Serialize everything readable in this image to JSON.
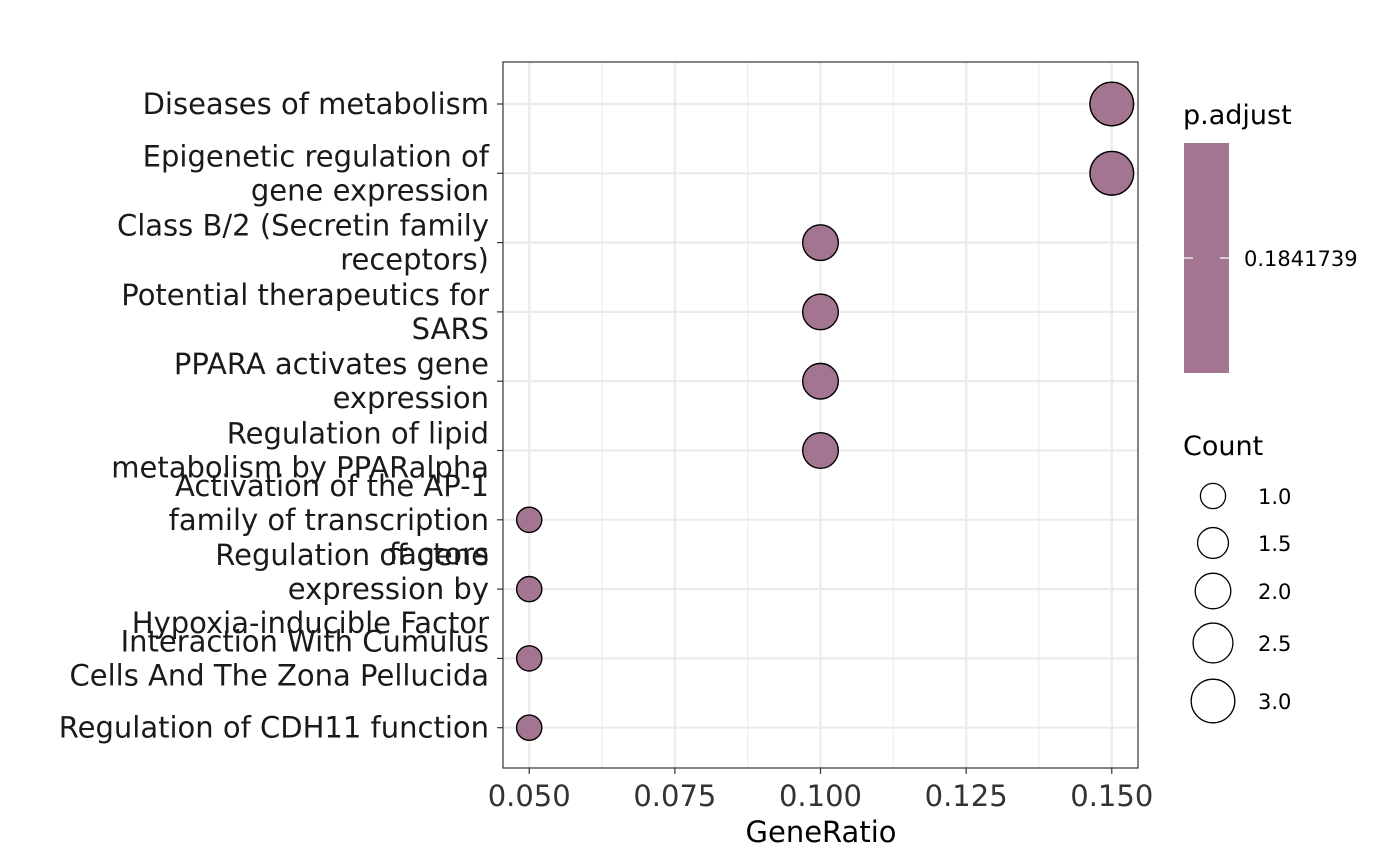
{
  "chart_data": {
    "type": "scatter",
    "title": "",
    "xlabel": "GeneRatio",
    "ylabel": "",
    "xlim": [
      0.0455,
      0.1545
    ],
    "x_ticks": [
      0.05,
      0.075,
      0.1,
      0.125,
      0.15
    ],
    "x_tick_labels": [
      "0.050",
      "0.075",
      "0.100",
      "0.125",
      "0.150"
    ],
    "grid": true,
    "points": [
      {
        "label": [
          "Diseases of metabolism"
        ],
        "gene_ratio": 0.15,
        "count": 3,
        "p_adjust": 0.1841739
      },
      {
        "label": [
          "Epigenetic regulation of",
          "gene expression"
        ],
        "gene_ratio": 0.15,
        "count": 3,
        "p_adjust": 0.1841739
      },
      {
        "label": [
          "Class B/2 (Secretin family",
          "receptors)"
        ],
        "gene_ratio": 0.1,
        "count": 2,
        "p_adjust": 0.1841739
      },
      {
        "label": [
          "Potential therapeutics for",
          "SARS"
        ],
        "gene_ratio": 0.1,
        "count": 2,
        "p_adjust": 0.1841739
      },
      {
        "label": [
          "PPARA activates gene",
          "expression"
        ],
        "gene_ratio": 0.1,
        "count": 2,
        "p_adjust": 0.1841739
      },
      {
        "label": [
          "Regulation of lipid",
          "metabolism by PPARalpha"
        ],
        "gene_ratio": 0.1,
        "count": 2,
        "p_adjust": 0.1841739
      },
      {
        "label": [
          "Activation of the AP-1",
          "family of transcription",
          "factors"
        ],
        "gene_ratio": 0.05,
        "count": 1,
        "p_adjust": 0.1841739
      },
      {
        "label": [
          "Regulation of gene",
          "expression by",
          "Hypoxia-inducible Factor"
        ],
        "gene_ratio": 0.05,
        "count": 1,
        "p_adjust": 0.1841739
      },
      {
        "label": [
          "Interaction With Cumulus",
          "Cells And The Zona Pellucida"
        ],
        "gene_ratio": 0.05,
        "count": 1,
        "p_adjust": 0.1841739
      },
      {
        "label": [
          "Regulation of CDH11 function"
        ],
        "gene_ratio": 0.05,
        "count": 1,
        "p_adjust": 0.1841739
      }
    ],
    "color_legend": {
      "title": "p.adjust",
      "value_label": "0.1841739",
      "color": "#a47590"
    },
    "size_legend": {
      "title": "Count",
      "entries": [
        {
          "value": 1.0,
          "label": "1.0"
        },
        {
          "value": 1.5,
          "label": "1.5"
        },
        {
          "value": 2.0,
          "label": "2.0"
        },
        {
          "value": 2.5,
          "label": "2.5"
        },
        {
          "value": 3.0,
          "label": "3.0"
        }
      ]
    },
    "legend_position": "right",
    "colors": {
      "point_fill": "#a47590",
      "point_stroke": "#000000",
      "grid": "#ebebeb",
      "panel_border": "#333333"
    }
  }
}
